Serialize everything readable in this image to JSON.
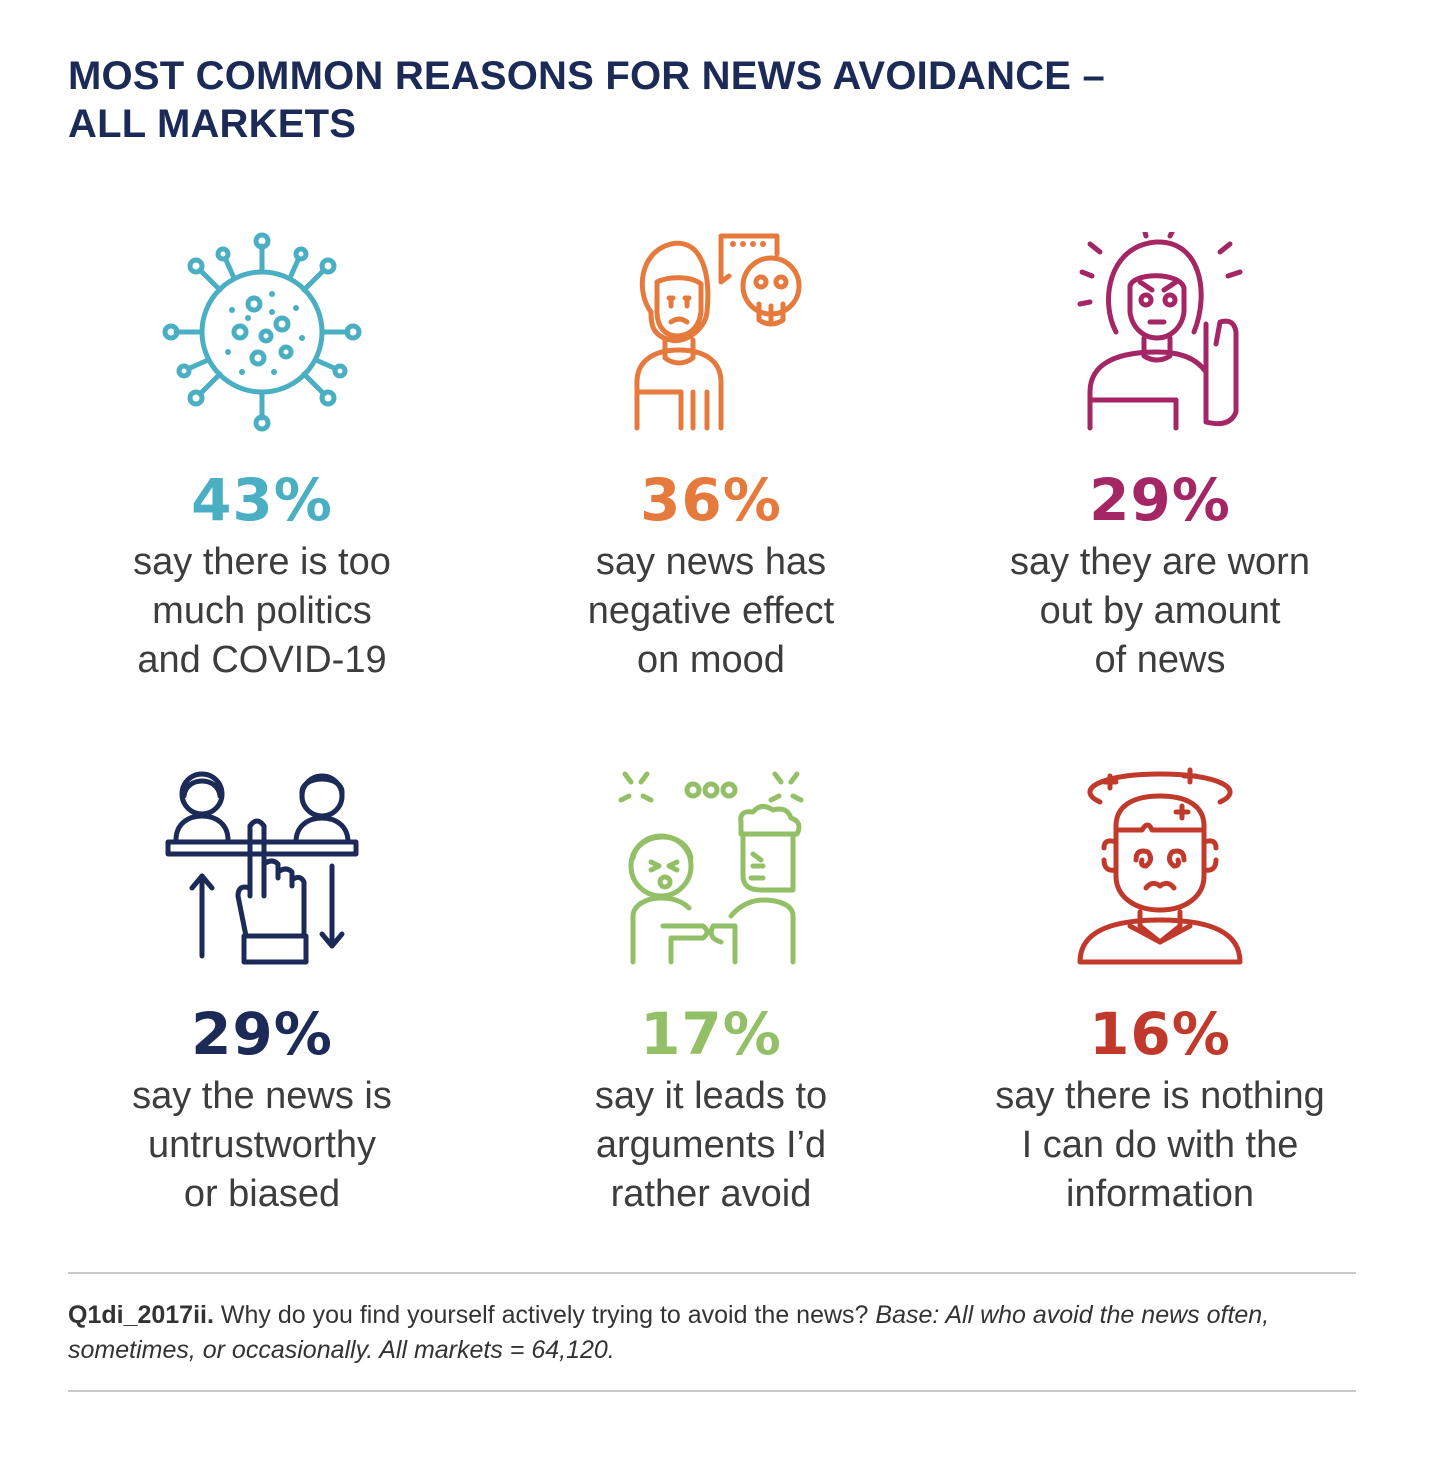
{
  "title": {
    "line1": "MOST COMMON REASONS FOR NEWS AVOIDANCE –",
    "line2": "ALL MARKETS"
  },
  "colors": {
    "title": "#1b2a57",
    "teal": "#4aafc2",
    "orange": "#e57a3c",
    "magenta": "#a52665",
    "navy": "#1b2a57",
    "green": "#93c066",
    "red": "#c0392b"
  },
  "stats": [
    {
      "icon": "virus-icon",
      "percent": "43%",
      "value": 43,
      "color": "#4aafc2",
      "lines": [
        "say there is too",
        "much politics",
        "and COVID-19"
      ]
    },
    {
      "icon": "sad-woman-speech-skull-icon",
      "percent": "36%",
      "value": 36,
      "color": "#e57a3c",
      "lines": [
        "say news has",
        "negative effect",
        "on mood"
      ]
    },
    {
      "icon": "tired-woman-icon",
      "percent": "29%",
      "value": 29,
      "color": "#a52665",
      "lines": [
        "say they are worn",
        "out by amount",
        "of news"
      ]
    },
    {
      "icon": "biased-scale-hand-icon",
      "percent": "29%",
      "value": 29,
      "color": "#1b2a57",
      "lines": [
        "say the news is",
        "untrustworthy",
        "or biased"
      ]
    },
    {
      "icon": "arguing-people-icon",
      "percent": "17%",
      "value": 17,
      "color": "#93c066",
      "lines": [
        "say it leads to",
        "arguments I’d",
        "rather avoid"
      ]
    },
    {
      "icon": "dizzy-man-icon",
      "percent": "16%",
      "value": 16,
      "color": "#c0392b",
      "lines": [
        "say there is nothing",
        "I can do with the",
        "information"
      ]
    }
  ],
  "footnote": {
    "code": "Q1di_2017ii.",
    "question": " Why do you find yourself actively trying to avoid the news? ",
    "base": "Base: All who avoid the news often, sometimes, or occasionally. All markets = 64,120."
  }
}
